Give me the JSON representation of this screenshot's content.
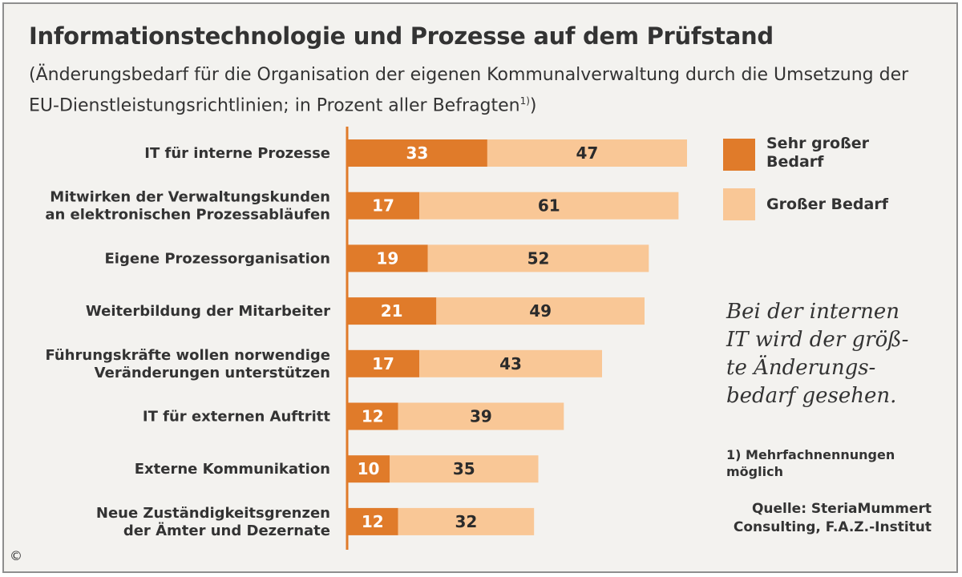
{
  "chart_data": {
    "type": "bar",
    "orientation": "horizontal",
    "stacked": true,
    "title": "Informationstechnologie und Prozesse auf dem Prüfstand",
    "subtitle": "(Änderungsbedarf für die Organisation der eigenen Kommunalverwaltung durch die Umsetzung der EU-Dienstleistungsrichtlinien; in Prozent aller Befragten",
    "subtitle_note": "1)",
    "subtitle_end": ")",
    "categories": [
      [
        "IT für interne Prozesse"
      ],
      [
        "Mitwirken der Verwaltungskunden",
        "an elektronischen Prozessabläufen"
      ],
      [
        "Eigene Prozessorganisation"
      ],
      [
        "Weiterbildung der Mitarbeiter"
      ],
      [
        "Führungskräfte wollen norwendige",
        "Veränderungen unterstützen"
      ],
      [
        "IT für externen Auftritt"
      ],
      [
        "Externe Kommunikation"
      ],
      [
        "Neue Zuständigkeitsgrenzen",
        "der Ämter und Dezernate"
      ]
    ],
    "series": [
      {
        "name": "Sehr großer Bedarf",
        "color": "#e07b2a",
        "label_color": "#ffffff",
        "values": [
          33,
          17,
          19,
          21,
          17,
          12,
          10,
          12
        ]
      },
      {
        "name": "Großer Bedarf",
        "color": "#f9c796",
        "label_color": "#2b2b2b",
        "values": [
          47,
          61,
          52,
          49,
          43,
          39,
          35,
          32
        ]
      }
    ],
    "xlim": [
      0,
      100
    ],
    "axis_color": "#e07b2a",
    "grid": false,
    "legend_position": "top-right"
  },
  "legend": {
    "items": [
      {
        "label_lines": [
          "Sehr großer",
          "Bedarf"
        ],
        "color": "#e07b2a"
      },
      {
        "label_lines": [
          "Großer Bedarf"
        ],
        "color": "#f9c796"
      }
    ]
  },
  "annotation": [
    "Bei der internen",
    "IT wird der größ-",
    "te Änderungs-",
    "bedarf gesehen."
  ],
  "footnote": [
    "1) Mehrfachnennungen",
    "möglich"
  ],
  "source": [
    "Quelle: SteriaMummert",
    "Consulting, F.A.Z.-Institut"
  ],
  "copyright": "©"
}
